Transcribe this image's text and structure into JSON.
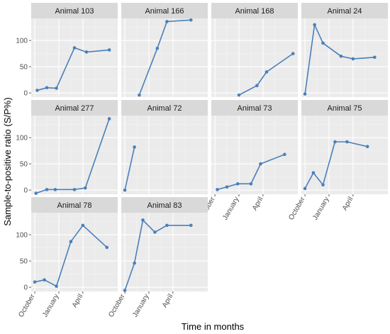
{
  "chart_data": {
    "type": "line",
    "xlabel": "Time in months",
    "ylabel": "Sample-to-positive ratio (S/P%)",
    "x_ticks": [
      "October",
      "January",
      "April"
    ],
    "y_ticks": [
      0,
      50,
      100
    ],
    "ylim": [
      -8,
      142
    ],
    "grid": true,
    "series_color": "#4A7FBA",
    "panels": [
      {
        "name": "Animal 103",
        "points": [
          [
            0.2,
            5
          ],
          [
            1.0,
            10
          ],
          [
            1.8,
            9
          ],
          [
            3.3,
            86
          ],
          [
            4.3,
            78
          ],
          [
            6.2,
            82
          ]
        ]
      },
      {
        "name": "Animal 166",
        "points": [
          [
            1.2,
            -4
          ],
          [
            2.7,
            85
          ],
          [
            3.5,
            136
          ],
          [
            5.5,
            139
          ]
        ]
      },
      {
        "name": "Animal 168",
        "points": [
          [
            2.0,
            -4
          ],
          [
            3.5,
            14
          ],
          [
            4.3,
            40
          ],
          [
            6.5,
            75
          ]
        ]
      },
      {
        "name": "Animal 24",
        "points": [
          [
            0.0,
            -2
          ],
          [
            0.8,
            130
          ],
          [
            1.5,
            95
          ],
          [
            3.0,
            70
          ],
          [
            4.0,
            65
          ],
          [
            5.8,
            68
          ]
        ]
      },
      {
        "name": "Animal 277",
        "points": [
          [
            0.1,
            -6
          ],
          [
            1.0,
            1
          ],
          [
            1.7,
            1
          ],
          [
            3.3,
            1
          ],
          [
            4.2,
            4
          ],
          [
            6.2,
            136
          ]
        ]
      },
      {
        "name": "Animal 72",
        "points": [
          [
            0.0,
            0
          ],
          [
            0.8,
            82
          ]
        ]
      },
      {
        "name": "Animal 73",
        "points": [
          [
            0.2,
            1
          ],
          [
            1.0,
            6
          ],
          [
            1.9,
            12
          ],
          [
            3.0,
            12
          ],
          [
            3.8,
            50
          ],
          [
            5.8,
            68
          ]
        ]
      },
      {
        "name": "Animal 75",
        "points": [
          [
            0.0,
            3
          ],
          [
            0.7,
            33
          ],
          [
            1.5,
            10
          ],
          [
            2.5,
            92
          ],
          [
            3.5,
            92
          ],
          [
            5.2,
            83
          ]
        ]
      },
      {
        "name": "Animal 78",
        "points": [
          [
            0.0,
            10
          ],
          [
            0.8,
            14
          ],
          [
            1.8,
            2
          ],
          [
            3.0,
            87
          ],
          [
            4.0,
            118
          ],
          [
            6.0,
            76
          ]
        ]
      },
      {
        "name": "Animal 83",
        "points": [
          [
            0.0,
            -6
          ],
          [
            0.8,
            46
          ],
          [
            1.5,
            128
          ],
          [
            2.5,
            105
          ],
          [
            3.5,
            118
          ],
          [
            5.5,
            118
          ]
        ]
      }
    ]
  }
}
